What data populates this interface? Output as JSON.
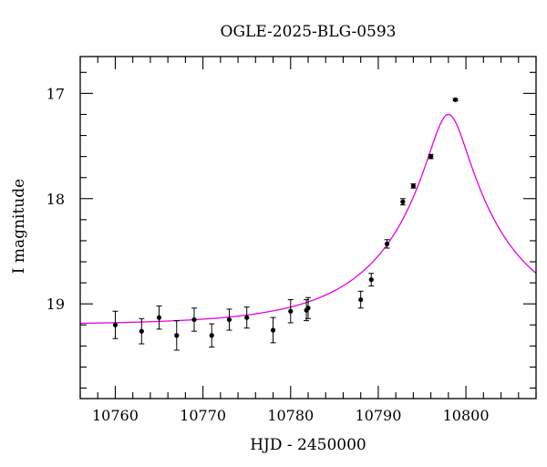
{
  "chart_data": {
    "type": "scatter",
    "title": "OGLE-2025-BLG-0593",
    "xlabel": "HJD - 2450000",
    "ylabel": "I magnitude",
    "xlim": [
      10756,
      10808
    ],
    "ylim": [
      19.9,
      16.65
    ],
    "y_inverted": true,
    "xticks": [
      10760,
      10770,
      10780,
      10790,
      10800
    ],
    "yticks": [
      17,
      18,
      19
    ],
    "grid": false,
    "colors": {
      "points": "#000000",
      "model": "#e600e6",
      "frame": "#000000"
    },
    "series": [
      {
        "type": "errorbar",
        "x": [
          10760.0,
          10763.0,
          10765.0,
          10767.0,
          10769.0,
          10771.0,
          10773.0,
          10775.0,
          10778.0,
          10780.0,
          10781.8,
          10782.0,
          10788.0,
          10789.2,
          10791.0,
          10792.8,
          10794.0,
          10796.0,
          10798.8
        ],
        "y": [
          19.2,
          19.26,
          19.13,
          19.3,
          19.15,
          19.3,
          19.15,
          19.13,
          19.25,
          19.07,
          19.06,
          19.04,
          18.96,
          18.77,
          18.43,
          18.03,
          17.88,
          17.6,
          17.06
        ],
        "err": [
          0.13,
          0.12,
          0.11,
          0.14,
          0.11,
          0.11,
          0.1,
          0.1,
          0.12,
          0.11,
          0.1,
          0.1,
          0.08,
          0.06,
          0.04,
          0.03,
          0.02,
          0.02,
          0.01
        ]
      },
      {
        "type": "model",
        "model": {
          "t0": 10798.0,
          "u0": 0.16,
          "tE": 13.3,
          "m_base": 19.2,
          "x_range": [
            10756,
            10808
          ]
        }
      }
    ]
  }
}
